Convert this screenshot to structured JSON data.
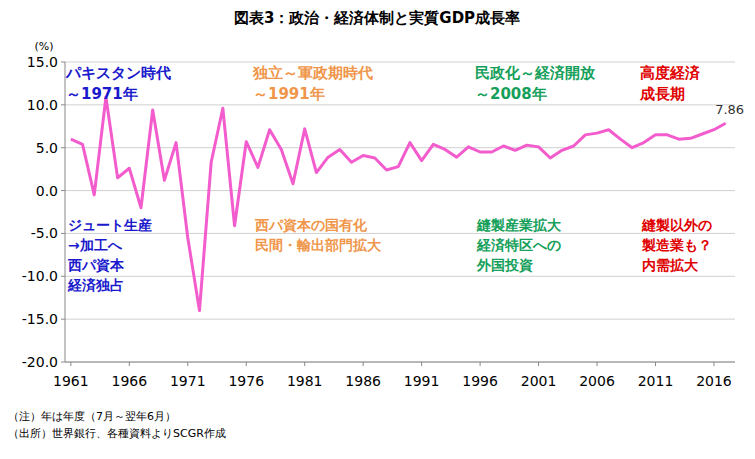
{
  "chart_data": {
    "type": "line",
    "title": "図表3：政治・経済体制と実質GDP成長率",
    "y_unit": "(%)",
    "color": "#f25ccd",
    "x": [
      1961,
      1962,
      1963,
      1964,
      1965,
      1966,
      1967,
      1968,
      1969,
      1970,
      1971,
      1972,
      1973,
      1974,
      1975,
      1976,
      1977,
      1978,
      1979,
      1980,
      1981,
      1982,
      1983,
      1984,
      1985,
      1986,
      1987,
      1988,
      1989,
      1990,
      1991,
      1992,
      1993,
      1994,
      1995,
      1996,
      1997,
      1998,
      1999,
      2000,
      2001,
      2002,
      2003,
      2004,
      2005,
      2006,
      2007,
      2008,
      2009,
      2010,
      2011,
      2012,
      2013,
      2014,
      2015,
      2016,
      2017
    ],
    "values": [
      6.0,
      5.4,
      -0.5,
      10.9,
      1.5,
      2.6,
      -2.0,
      9.4,
      1.2,
      5.6,
      -5.5,
      -14.0,
      3.3,
      9.6,
      -4.1,
      5.7,
      2.7,
      7.1,
      4.8,
      0.8,
      7.2,
      2.1,
      3.9,
      4.8,
      3.3,
      4.1,
      3.8,
      2.4,
      2.8,
      5.6,
      3.5,
      5.4,
      4.8,
      3.9,
      5.1,
      4.5,
      4.5,
      5.2,
      4.7,
      5.3,
      5.1,
      3.8,
      4.7,
      5.2,
      6.5,
      6.7,
      7.1,
      6.0,
      5.0,
      5.6,
      6.5,
      6.5,
      6.0,
      6.1,
      6.6,
      7.1,
      7.86
    ],
    "xlim": [
      1960.5,
      2017.8
    ],
    "xticks": [
      1961,
      1966,
      1971,
      1976,
      1981,
      1986,
      1991,
      1996,
      2001,
      2006,
      2011,
      2016
    ],
    "ylim": [
      -20,
      15
    ],
    "yticks": [
      {
        "value": -20,
        "label": "-20.0"
      },
      {
        "value": -15,
        "label": "-15.0"
      },
      {
        "value": -10,
        "label": "-10.0"
      },
      {
        "value": -5,
        "label": "-5.0"
      },
      {
        "value": 0,
        "label": "0.0"
      },
      {
        "value": 5,
        "label": "5.0"
      },
      {
        "value": 10,
        "label": "10.0"
      },
      {
        "value": 15,
        "label": "15.0"
      }
    ],
    "grid": true,
    "eras": [
      {
        "period": [
          "パキスタン時代",
          "～1971年"
        ],
        "note": [
          "ジュート生産",
          "→加工へ",
          "西パ資本",
          "経済独占"
        ],
        "color": "#1a1acc"
      },
      {
        "period": [
          "独立～軍政期時代",
          "～1991年"
        ],
        "note": [
          "西パ資本の国有化",
          "民間・輸出部門拡大"
        ],
        "color": "#f0964a"
      },
      {
        "period": [
          "民政化～経済開放",
          "～2008年"
        ],
        "note": [
          "縫製産業拡大",
          "経済特区への",
          "外国投資"
        ],
        "color": "#14a05a"
      },
      {
        "period": [
          "高度経済",
          "成長期"
        ],
        "note": [
          "縫製以外の",
          "製造業も？",
          "内需拡大"
        ],
        "color": "#e00000"
      }
    ],
    "notes": [
      "（注）年は年度（7月～翌年6月）",
      "（出所）世界銀行、各種資料よりSCGR作成"
    ]
  }
}
